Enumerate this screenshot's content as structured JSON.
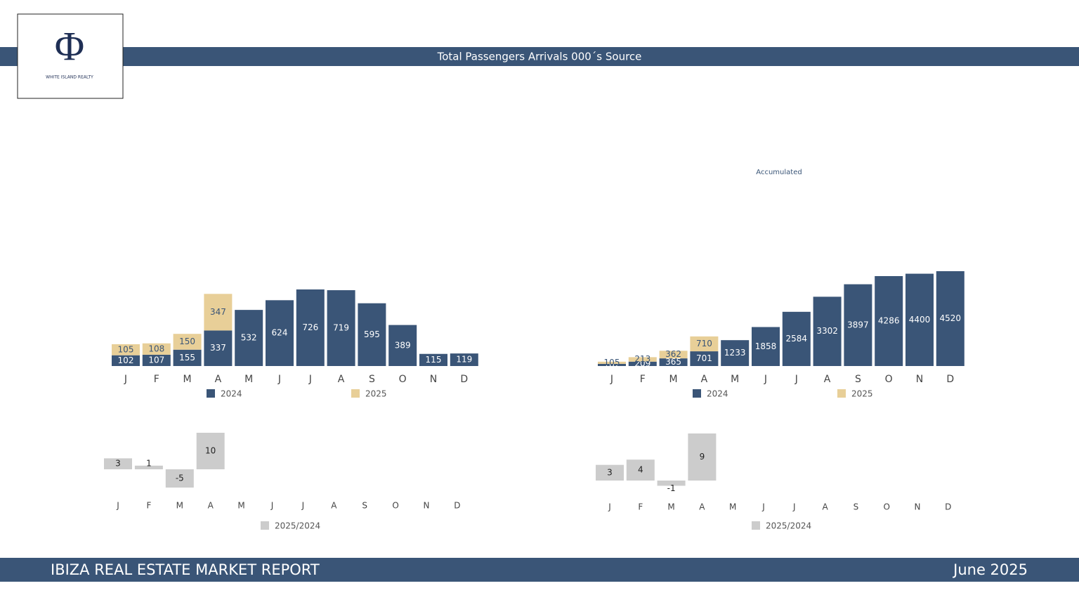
{
  "header": {
    "title": "Total Passengers Arrivals  000´s Source",
    "logo_symbol": "Φ",
    "logo_text": "WHITE ISLAND REALTY"
  },
  "footer": {
    "left": "IBIZA REAL ESTATE MARKET REPORT",
    "right": "June 2025"
  },
  "chart_data": [
    {
      "type": "bar",
      "stacked": true,
      "categories": [
        "J",
        "F",
        "M",
        "A",
        "M",
        "J",
        "J",
        "A",
        "S",
        "O",
        "N",
        "D"
      ],
      "series": [
        {
          "name": "2024",
          "color": "#3a5577",
          "values": [
            102,
            107,
            155,
            337,
            532,
            624,
            726,
            719,
            595,
            389,
            115,
            119
          ]
        },
        {
          "name": "2025",
          "color": "#e8cf98",
          "values": [
            105,
            108,
            150,
            347,
            null,
            null,
            null,
            null,
            null,
            null,
            null,
            null
          ]
        }
      ]
    },
    {
      "type": "bar",
      "stacked": true,
      "title": "Accumulated",
      "categories": [
        "J",
        "F",
        "M",
        "A",
        "M",
        "J",
        "J",
        "A",
        "S",
        "O",
        "N",
        "D"
      ],
      "series": [
        {
          "name": "2024",
          "color": "#3a5577",
          "values": [
            102,
            209,
            365,
            701,
            1233,
            1858,
            2584,
            3302,
            3897,
            4286,
            4400,
            4520
          ]
        },
        {
          "name": "2025",
          "color": "#e8cf98",
          "values": [
            105,
            213,
            362,
            710,
            null,
            null,
            null,
            null,
            null,
            null,
            null,
            null
          ]
        }
      ]
    },
    {
      "type": "bar",
      "stacked": false,
      "categories": [
        "J",
        "F",
        "M",
        "A",
        "M",
        "J",
        "J",
        "A",
        "S",
        "O",
        "N",
        "D"
      ],
      "series": [
        {
          "name": "2025/2024",
          "color": "#cccccc",
          "values": [
            3,
            1,
            -5,
            10,
            null,
            null,
            null,
            null,
            null,
            null,
            null,
            null
          ]
        }
      ]
    },
    {
      "type": "bar",
      "stacked": false,
      "categories": [
        "J",
        "F",
        "M",
        "A",
        "M",
        "J",
        "J",
        "A",
        "S",
        "O",
        "N",
        "D"
      ],
      "series": [
        {
          "name": "2025/2024",
          "color": "#cccccc",
          "values": [
            3,
            4,
            -1,
            9,
            null,
            null,
            null,
            null,
            null,
            null,
            null,
            null
          ]
        }
      ]
    }
  ]
}
